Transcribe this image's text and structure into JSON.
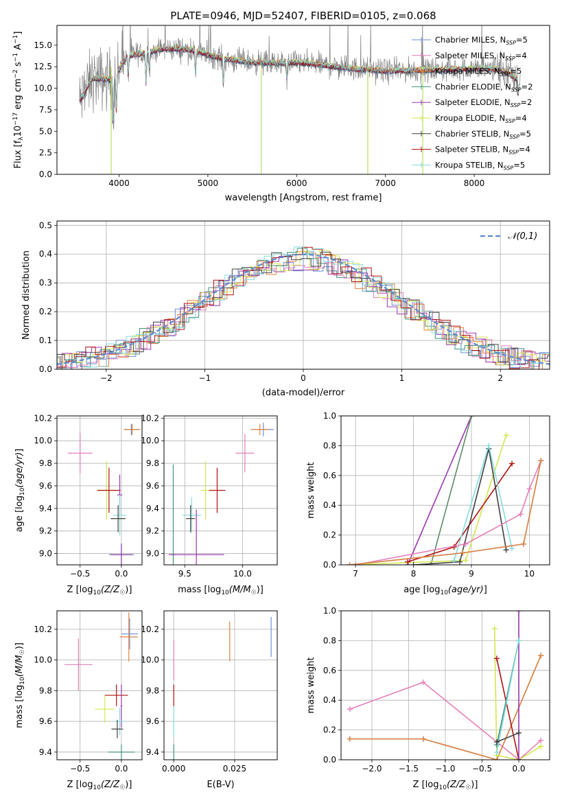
{
  "title": "PLATE=0946, MJD=52407, FIBERID=0105, z=0.068",
  "colors": {
    "blue": "#6a8fd6",
    "pink": "#e47fb8",
    "orange": "#e2833c",
    "teal": "#3f9081",
    "purple": "#9a35b0",
    "yellow": "#d4e64e",
    "dark": "#3f3f3f",
    "red": "#b00f0f",
    "cyan": "#86dcdc",
    "green": "#5e8a66",
    "gray": "#7f7f7f",
    "gauss": "#5b8bd1"
  },
  "chart_data": [
    {
      "id": "spectrum",
      "type": "line",
      "title": "PLATE=0946, MJD=52407, FIBERID=0105, z=0.068",
      "xlabel": "wavelength [Angstrom, rest frame]",
      "ylabel": "Flux [f_λ 10^-17 erg cm^-2 s^-1 A^-1]",
      "xlim": [
        3300,
        8850
      ],
      "ylim": [
        0,
        17.3
      ],
      "xticks": [
        4000,
        5000,
        6000,
        7000,
        8000
      ],
      "yticks": [
        0.0,
        2.5,
        5.0,
        7.5,
        10.0,
        12.5,
        15.0
      ],
      "legend": "top-right",
      "legend_entries": [
        "Chabrier MILES, N_SSP=5",
        "Salpeter MILES, N_SSP=4",
        "Kroupa MILES, N_SSP=5",
        "Chabrier ELODIE, N_SSP=2",
        "Salpeter ELODIE, N_SSP=2",
        "Kroupa ELODIE, N_SSP=4",
        "Chabrier STELIB, N_SSP=5",
        "Salpeter STELIB, N_SSP=4",
        "Kroupa STELIB, N_SSP=5"
      ],
      "continuum": [
        [
          3550,
          8.3
        ],
        [
          3700,
          11.2
        ],
        [
          3900,
          11.0
        ],
        [
          4000,
          12.2
        ],
        [
          4100,
          13.8
        ],
        [
          4300,
          14.1
        ],
        [
          4500,
          14.6
        ],
        [
          4800,
          14.5
        ],
        [
          5000,
          13.9
        ],
        [
          5200,
          13.4
        ],
        [
          5500,
          13.0
        ],
        [
          5800,
          12.9
        ],
        [
          6000,
          13.0
        ],
        [
          6300,
          12.7
        ],
        [
          6600,
          12.3
        ],
        [
          7000,
          12.0
        ],
        [
          7500,
          12.1
        ],
        [
          7800,
          12.2
        ],
        [
          8000,
          12.3
        ],
        [
          8300,
          12.2
        ],
        [
          8500,
          11.0
        ]
      ],
      "absorption_features": [
        [
          3934,
          5.5
        ],
        [
          3969,
          4.5
        ],
        [
          4102,
          2.5
        ],
        [
          4304,
          3.5
        ],
        [
          4341,
          2.0
        ],
        [
          4861,
          2.5
        ],
        [
          5175,
          3.0
        ],
        [
          5890,
          2.0
        ],
        [
          8498,
          1.5
        ],
        [
          8542,
          2.0
        ],
        [
          8662,
          1.8
        ]
      ],
      "spikes": [
        [
          3910,
          0
        ],
        [
          5600,
          0
        ],
        [
          6800,
          0
        ],
        [
          7420,
          0
        ]
      ]
    },
    {
      "id": "residuals",
      "type": "line",
      "xlabel": "(data-model)/error",
      "ylabel": "Normed distribution",
      "xlim": [
        -2.5,
        2.5
      ],
      "ylim": [
        0,
        0.515
      ],
      "xticks": [
        -2,
        -1,
        0,
        1,
        2
      ],
      "yticks": [
        0.0,
        0.1,
        0.2,
        0.3,
        0.4,
        0.5
      ],
      "gauss_label": "𝒩(0,1)",
      "legend": "top-right"
    },
    {
      "id": "age-vs-Z",
      "type": "scatter",
      "xlabel": "Z [log10(Z/Z☉)]",
      "ylabel": "age  [log10(age/yr)]",
      "xlim": [
        -0.78,
        0.25
      ],
      "ylim": [
        8.9,
        10.22
      ],
      "xticks": [
        -0.5,
        0.0
      ],
      "yticks": [
        9.0,
        9.2,
        9.4,
        9.6,
        9.8,
        10.0,
        10.2
      ],
      "points": [
        {
          "c": "blue",
          "x": 0.12,
          "y": 10.1,
          "ex": 0.09,
          "ey": 0.05
        },
        {
          "c": "orange",
          "x": 0.13,
          "y": 10.1,
          "ex": 0.1,
          "ey": 0.05
        },
        {
          "c": "pink",
          "x": -0.5,
          "y": 9.89,
          "ex": 0.15,
          "ey": 0.18
        },
        {
          "c": "yellow",
          "x": -0.18,
          "y": 9.56,
          "ex": 0.12,
          "ey": 0.26
        },
        {
          "c": "red",
          "x": -0.15,
          "y": 9.56,
          "ex": 0.14,
          "ey": 0.2
        },
        {
          "c": "purple",
          "x": -0.02,
          "y": 9.52,
          "ex": 0.03,
          "ey": 0.18
        },
        {
          "c": "cyan",
          "x": -0.02,
          "y": 9.34,
          "ex": 0.08,
          "ey": 0.18
        },
        {
          "c": "dark",
          "x": -0.04,
          "y": 9.31,
          "ex": 0.09,
          "ey": 0.12
        },
        {
          "c": "teal",
          "x": 0.0,
          "y": 8.99,
          "ex": 0.15,
          "ey": 0.1
        },
        {
          "c": "purple",
          "x": 0.0,
          "y": 8.99,
          "ex": 0.13,
          "ey": 0.09
        }
      ]
    },
    {
      "id": "age-vs-mass",
      "type": "scatter",
      "xlabel": "mass [log10(M/M☉)]",
      "ylabel": "",
      "xlim": [
        9.32,
        10.3
      ],
      "ylim": [
        8.9,
        10.22
      ],
      "xticks": [
        9.5,
        10.0
      ],
      "yticks": [
        9.0,
        9.2,
        9.4,
        9.6,
        9.8,
        10.0,
        10.2
      ],
      "points": [
        {
          "c": "blue",
          "x": 10.18,
          "y": 10.1,
          "ex": 0.09,
          "ey": 0.06
        },
        {
          "c": "orange",
          "x": 10.15,
          "y": 10.1,
          "ex": 0.08,
          "ey": 0.05
        },
        {
          "c": "pink",
          "x": 10.02,
          "y": 9.89,
          "ex": 0.08,
          "ey": 0.17
        },
        {
          "c": "yellow",
          "x": 9.68,
          "y": 9.56,
          "ex": 0.04,
          "ey": 0.26
        },
        {
          "c": "red",
          "x": 9.78,
          "y": 9.56,
          "ex": 0.07,
          "ey": 0.2
        },
        {
          "c": "cyan",
          "x": 9.56,
          "y": 9.34,
          "ex": 0.08,
          "ey": 0.16
        },
        {
          "c": "dark",
          "x": 9.55,
          "y": 9.31,
          "ex": 0.04,
          "ey": 0.12
        },
        {
          "c": "teal",
          "x": 9.4,
          "y": 8.99,
          "ex": 0.02,
          "ey": 0.8
        },
        {
          "c": "purple",
          "x": 9.6,
          "y": 8.99,
          "ex": 0.24,
          "ey": 0.4
        }
      ]
    },
    {
      "id": "weight-vs-age",
      "type": "line",
      "xlabel": "age  [log10(age/yr)]",
      "ylabel": "mass weight",
      "xlim": [
        6.75,
        10.35
      ],
      "ylim": [
        0,
        1.0
      ],
      "xticks": [
        7,
        8,
        9,
        10
      ],
      "yticks": [
        0.0,
        0.2,
        0.4,
        0.6,
        0.8,
        1.0
      ],
      "series": [
        {
          "c": "purple",
          "x": [
            7.9,
            9.0
          ],
          "y": [
            0.0,
            1.0
          ]
        },
        {
          "c": "green",
          "x": [
            8.3,
            9.0
          ],
          "y": [
            0.0,
            1.0
          ]
        },
        {
          "c": "yellow",
          "x": [
            6.9,
            8.9,
            9.6
          ],
          "y": [
            0.0,
            0.03,
            0.87
          ]
        },
        {
          "c": "red",
          "x": [
            7.9,
            8.7,
            9.7
          ],
          "y": [
            0.02,
            0.12,
            0.68
          ]
        },
        {
          "c": "dark",
          "x": [
            8.0,
            8.8,
            9.3,
            9.6
          ],
          "y": [
            0.0,
            0.02,
            0.78,
            0.1
          ]
        },
        {
          "c": "cyan",
          "x": [
            8.7,
            9.3,
            9.7
          ],
          "y": [
            0.03,
            0.8,
            0.11
          ]
        },
        {
          "c": "pink",
          "x": [
            7.0,
            8.9,
            9.85,
            10.0,
            10.2
          ],
          "y": [
            0.0,
            0.14,
            0.34,
            0.51,
            0.7
          ]
        },
        {
          "c": "blue",
          "x": [
            6.9,
            8.85,
            9.9,
            10.2
          ],
          "y": [
            0.0,
            0.08,
            0.14,
            0.7
          ]
        },
        {
          "c": "orange",
          "x": [
            6.9,
            8.85,
            9.9,
            10.2
          ],
          "y": [
            0.0,
            0.08,
            0.14,
            0.7
          ]
        }
      ]
    },
    {
      "id": "mass-vs-Z",
      "type": "scatter",
      "xlabel": "Z [log10(Z/Z☉)]",
      "ylabel": "mass [log10(M/M☉)]",
      "xlim": [
        -0.78,
        0.25
      ],
      "ylim": [
        9.35,
        10.32
      ],
      "xticks": [
        -0.5,
        0.0
      ],
      "yticks": [
        9.4,
        9.6,
        9.8,
        10.0,
        10.2
      ],
      "points": [
        {
          "c": "blue",
          "x": 0.1,
          "y": 10.17,
          "ex": 0.1,
          "ey": 0.1
        },
        {
          "c": "orange",
          "x": 0.09,
          "y": 10.15,
          "ex": 0.11,
          "ey": 0.16
        },
        {
          "c": "pink",
          "x": -0.52,
          "y": 9.97,
          "ex": 0.17,
          "ey": 0.17
        },
        {
          "c": "yellow",
          "x": -0.2,
          "y": 9.68,
          "ex": 0.12,
          "ey": 0.09
        },
        {
          "c": "red",
          "x": -0.06,
          "y": 9.77,
          "ex": 0.14,
          "ey": 0.07
        },
        {
          "c": "purple",
          "x": 0.0,
          "y": 9.7,
          "ex": 0.01,
          "ey": 0.14
        },
        {
          "c": "cyan",
          "x": -0.02,
          "y": 9.6,
          "ex": 0.06,
          "ey": 0.09
        },
        {
          "c": "dark",
          "x": -0.05,
          "y": 9.55,
          "ex": 0.07,
          "ey": 0.06
        },
        {
          "c": "teal",
          "x": 0.0,
          "y": 9.4,
          "ex": 0.16,
          "ey": 0.05
        }
      ]
    },
    {
      "id": "mass-vs-ebv",
      "type": "scatter",
      "xlabel": "E(B-V)",
      "ylabel": "",
      "xlim": [
        -0.004,
        0.0425
      ],
      "ylim": [
        9.35,
        10.32
      ],
      "xticks": [
        0.0,
        0.025
      ],
      "xticklabels": [
        "0.000",
        "0.025"
      ],
      "yticks": [
        9.4,
        9.6,
        9.8,
        10.0,
        10.2
      ],
      "points": [
        {
          "c": "blue",
          "x": 0.04,
          "y": 10.15,
          "ex": 0,
          "ey": 0.13
        },
        {
          "c": "orange",
          "x": 0.023,
          "y": 10.12,
          "ex": 0,
          "ey": 0.13
        },
        {
          "c": "pink",
          "x": 0.0,
          "y": 10.0,
          "ex": 0,
          "ey": 0.13
        },
        {
          "c": "red",
          "x": 0.0,
          "y": 9.77,
          "ex": 0,
          "ey": 0.07
        },
        {
          "c": "cyan",
          "x": 0.0,
          "y": 9.6,
          "ex": 0,
          "ey": 0.1
        },
        {
          "c": "teal",
          "x": 0.0,
          "y": 9.4,
          "ex": 0,
          "ey": 0.05
        }
      ]
    },
    {
      "id": "weight-vs-Z",
      "type": "line",
      "xlabel": "Z [log10(Z/Z☉)]",
      "ylabel": "mass weight",
      "xlim": [
        -2.42,
        0.42
      ],
      "ylim": [
        0,
        1.0
      ],
      "xticks": [
        -2.0,
        -1.5,
        -1.0,
        -0.5,
        0.0
      ],
      "yticks": [
        0.0,
        0.2,
        0.4,
        0.6,
        0.8,
        1.0
      ],
      "series": [
        {
          "c": "pink",
          "x": [
            -2.3,
            -1.3,
            0.0,
            0.3
          ],
          "y": [
            0.34,
            0.52,
            0.0,
            0.13
          ]
        },
        {
          "c": "blue",
          "x": [
            -2.3,
            -1.3,
            -0.3,
            0.3
          ],
          "y": [
            0.14,
            0.14,
            0.0,
            0.7
          ]
        },
        {
          "c": "orange",
          "x": [
            -2.3,
            -1.3,
            -0.3,
            0.3
          ],
          "y": [
            0.14,
            0.14,
            0.0,
            0.7
          ]
        },
        {
          "c": "yellow",
          "x": [
            -0.33,
            -0.3,
            0.0,
            0.3
          ],
          "y": [
            0.88,
            0.03,
            0.0,
            0.09
          ]
        },
        {
          "c": "red",
          "x": [
            -0.3,
            0.0
          ],
          "y": [
            0.68,
            0.0
          ]
        },
        {
          "c": "purple",
          "x": [
            0.0,
            0.0
          ],
          "y": [
            0.0,
            1.0
          ]
        },
        {
          "c": "teal",
          "x": [
            -0.3,
            0.0
          ],
          "y": [
            0.1,
            0.8
          ]
        },
        {
          "c": "cyan",
          "x": [
            -0.3,
            0.0
          ],
          "y": [
            0.05,
            0.8
          ]
        },
        {
          "c": "dark",
          "x": [
            -0.3,
            0.0
          ],
          "y": [
            0.12,
            0.18
          ]
        }
      ]
    }
  ]
}
